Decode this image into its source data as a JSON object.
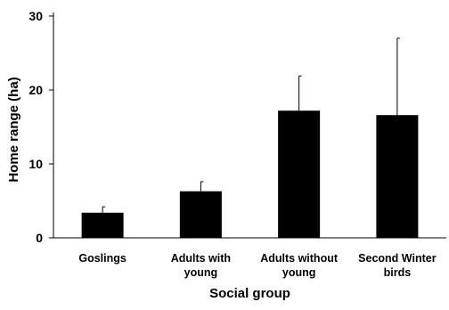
{
  "chart_data": {
    "type": "bar",
    "categories": [
      [
        "Goslings"
      ],
      [
        "Adults with",
        "young"
      ],
      [
        "Adults without",
        "young"
      ],
      [
        "Second Winter",
        "birds"
      ]
    ],
    "values": [
      3.4,
      6.3,
      17.2,
      16.6
    ],
    "error_upper": [
      4.2,
      7.6,
      21.9,
      27.0
    ],
    "xlabel": "Social group",
    "ylabel": "Home range (ha)",
    "ylim": [
      0,
      30
    ],
    "yticks": [
      0,
      10,
      20,
      30
    ],
    "grid": false,
    "bar_color": "#000000"
  }
}
